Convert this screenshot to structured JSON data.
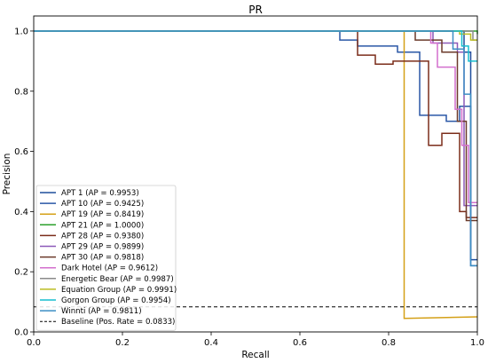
{
  "chart_data": {
    "type": "line",
    "title": "PR",
    "xlabel": "Recall",
    "ylabel": "Precision",
    "xlim": [
      0,
      1
    ],
    "ylim": [
      0,
      1.05
    ],
    "xticks": [
      "0.0",
      "0.2",
      "0.4",
      "0.6",
      "0.8",
      "1.0"
    ],
    "yticks": [
      "0.0",
      "0.2",
      "0.4",
      "0.6",
      "0.8",
      "1.0"
    ],
    "grid": false,
    "legend_position": "lower-left",
    "series": [
      {
        "name": "APT 1 (AP = 0.9953)",
        "color": "#1f4e9c",
        "x": [
          0,
          0.97,
          0.97,
          0.985,
          0.985,
          1.0
        ],
        "y": [
          1.0,
          1.0,
          0.93,
          0.93,
          0.24,
          0.24
        ]
      },
      {
        "name": "APT 10 (AP = 0.9425)",
        "color": "#2a57a6",
        "x": [
          0,
          0.69,
          0.69,
          0.73,
          0.73,
          0.82,
          0.82,
          0.87,
          0.87,
          0.93,
          0.93,
          0.96,
          0.96,
          0.985,
          0.985,
          1.0
        ],
        "y": [
          1.0,
          1.0,
          0.97,
          0.97,
          0.95,
          0.95,
          0.93,
          0.93,
          0.72,
          0.72,
          0.7,
          0.7,
          0.75,
          0.75,
          0.22,
          0.22
        ]
      },
      {
        "name": "APT 19 (AP = 0.8419)",
        "color": "#d4a017",
        "x": [
          0,
          0.835,
          0.835,
          1.0
        ],
        "y": [
          1.0,
          1.0,
          0.045,
          0.05
        ]
      },
      {
        "name": "APT 21 (AP = 1.0000)",
        "color": "#2ca02c",
        "x": [
          0,
          1.0,
          1.0
        ],
        "y": [
          1.0,
          1.0,
          0.99
        ]
      },
      {
        "name": "APT 28 (AP = 0.9380)",
        "color": "#7b2d1a",
        "x": [
          0,
          0.73,
          0.73,
          0.77,
          0.77,
          0.81,
          0.81,
          0.89,
          0.89,
          0.92,
          0.92,
          0.96,
          0.96,
          0.975,
          0.975,
          1.0
        ],
        "y": [
          1.0,
          1.0,
          0.92,
          0.92,
          0.89,
          0.89,
          0.9,
          0.9,
          0.62,
          0.62,
          0.66,
          0.66,
          0.4,
          0.4,
          0.38,
          0.38
        ]
      },
      {
        "name": "APT 29 (AP = 0.9899)",
        "color": "#8c59b8",
        "x": [
          0,
          0.9,
          0.9,
          0.955,
          0.955,
          0.97,
          0.97,
          1.0
        ],
        "y": [
          1.0,
          1.0,
          0.96,
          0.96,
          0.93,
          0.93,
          0.42,
          0.42
        ]
      },
      {
        "name": "APT 30 (AP = 0.9818)",
        "color": "#6b3a2a",
        "x": [
          0,
          0.86,
          0.86,
          0.92,
          0.92,
          0.955,
          0.955,
          0.975,
          0.975,
          1.0
        ],
        "y": [
          1.0,
          1.0,
          0.97,
          0.97,
          0.93,
          0.93,
          0.7,
          0.7,
          0.37,
          0.37
        ]
      },
      {
        "name": "Dark Hotel (AP = 0.9612)",
        "color": "#d36fcd",
        "x": [
          0,
          0.895,
          0.895,
          0.91,
          0.91,
          0.95,
          0.95,
          0.965,
          0.965,
          0.98,
          0.98,
          1.0
        ],
        "y": [
          1.0,
          1.0,
          0.96,
          0.96,
          0.88,
          0.88,
          0.74,
          0.74,
          0.62,
          0.62,
          0.43,
          0.43
        ]
      },
      {
        "name": "Energetic Bear (AP = 0.9987)",
        "color": "#8a8a8a",
        "x": [
          0,
          0.99,
          0.99,
          1.0
        ],
        "y": [
          1.0,
          1.0,
          0.97,
          0.97
        ]
      },
      {
        "name": "Equation Group (AP = 0.9991)",
        "color": "#bcbd22",
        "x": [
          0,
          0.96,
          0.96,
          0.985,
          0.985,
          1.0
        ],
        "y": [
          1.0,
          1.0,
          0.99,
          0.99,
          0.97,
          0.97
        ]
      },
      {
        "name": "Gorgon Group (AP = 0.9954)",
        "color": "#17becf",
        "x": [
          0,
          0.965,
          0.965,
          0.98,
          0.98,
          1.0
        ],
        "y": [
          1.0,
          1.0,
          0.95,
          0.95,
          0.9,
          0.9
        ]
      },
      {
        "name": "Winnti (AP = 0.9811)",
        "color": "#3c8ec4",
        "x": [
          0,
          0.945,
          0.945,
          0.97,
          0.97,
          0.985,
          0.985,
          1.0
        ],
        "y": [
          1.0,
          1.0,
          0.94,
          0.94,
          0.79,
          0.79,
          0.22,
          0.22
        ]
      }
    ],
    "baseline": {
      "name": "Baseline (Pos. Rate = 0.0833)",
      "value": 0.0833,
      "color": "#000000",
      "style": "dashed"
    }
  }
}
